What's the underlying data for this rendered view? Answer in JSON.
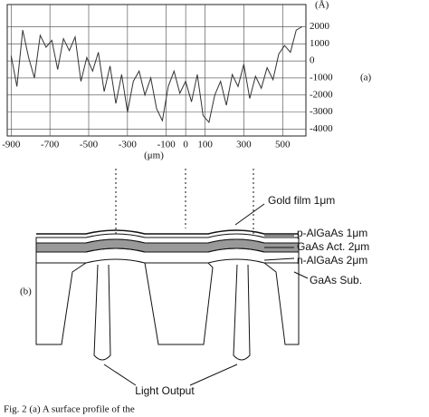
{
  "chart_data": {
    "type": "line",
    "ylabel": "(Å)",
    "xlabel": "(μm)",
    "panel": "(a)",
    "x": [
      -900,
      -870,
      -840,
      -810,
      -780,
      -750,
      -720,
      -690,
      -660,
      -630,
      -600,
      -570,
      -540,
      -510,
      -480,
      -450,
      -420,
      -390,
      -360,
      -330,
      -300,
      -270,
      -240,
      -210,
      -180,
      -150,
      -120,
      -90,
      -60,
      -30,
      0,
      30,
      60,
      90,
      120,
      150,
      180,
      210,
      240,
      270,
      300,
      330,
      360,
      390,
      420,
      450,
      480,
      510,
      540,
      570,
      600
    ],
    "series": [
      {
        "color": "#333333",
        "values": [
          300,
          -1500,
          1800,
          200,
          -1000,
          1500,
          800,
          1200,
          -500,
          1300,
          600,
          1400,
          -1200,
          200,
          -600,
          500,
          -1800,
          -300,
          -2500,
          -800,
          -3000,
          -1200,
          -600,
          -2000,
          -1000,
          -2800,
          -3500,
          -1500,
          -600,
          -1900,
          -1200,
          -2400,
          -800,
          -3200,
          -3600,
          -2000,
          -1200,
          -2600,
          -800,
          -1500,
          -200,
          -2200,
          -900,
          -1600,
          -400,
          -1100,
          400,
          900,
          500,
          1800,
          2000
        ]
      }
    ],
    "xlim": [
      -920,
      620
    ],
    "xticks": [
      -900,
      -700,
      -500,
      -300,
      -100,
      0,
      100,
      300,
      500
    ],
    "ylim": [
      -4400,
      3300
    ],
    "yticks": [
      2000,
      1000,
      0,
      -1000,
      -2000,
      -3000,
      -4000
    ],
    "grid": true
  },
  "diagram": {
    "panel": "(b)",
    "labels": [
      "Gold film 1μm",
      "p-AlGaAs 1μm",
      "GaAs Act. 2μm",
      "n-AlGaAs 2μm",
      "GaAs Sub.",
      "Light Output"
    ]
  },
  "caption": "Fig. 2   (a) A surface profile of the"
}
